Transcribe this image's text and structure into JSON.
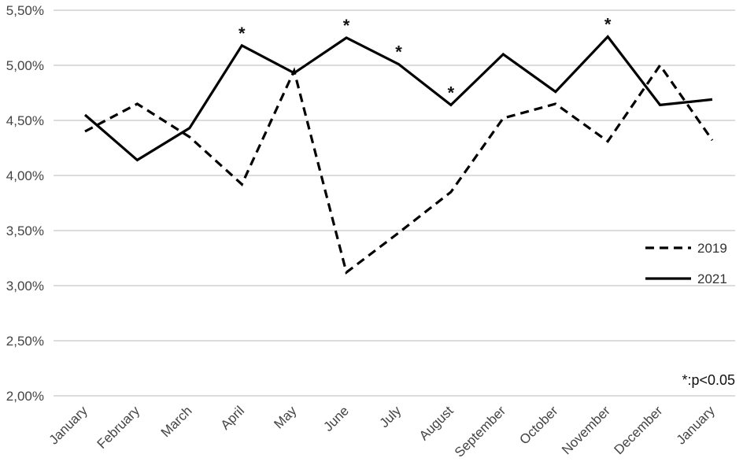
{
  "chart_data": {
    "type": "line",
    "categories": [
      "January",
      "February",
      "March",
      "April",
      "May",
      "June",
      "July",
      "August",
      "September",
      "October",
      "November",
      "December",
      "January"
    ],
    "series": [
      {
        "name": "2019",
        "values": [
          4.4,
          4.65,
          4.35,
          3.92,
          4.95,
          3.12,
          3.48,
          3.85,
          4.52,
          4.65,
          4.31,
          5.0,
          4.32
        ],
        "dash": "dashed",
        "color": "#000000"
      },
      {
        "name": "2021",
        "values": [
          4.55,
          4.14,
          4.43,
          5.18,
          4.93,
          5.25,
          5.01,
          4.64,
          5.1,
          4.76,
          5.26,
          4.64,
          4.69
        ],
        "dash": "solid",
        "color": "#000000"
      }
    ],
    "ylim": [
      2.0,
      5.5
    ],
    "yticks": [
      {
        "value": 2.0,
        "label": "2,00%"
      },
      {
        "value": 2.5,
        "label": "2,50%"
      },
      {
        "value": 3.0,
        "label": "3,00%"
      },
      {
        "value": 3.5,
        "label": "3,50%"
      },
      {
        "value": 4.0,
        "label": "4,00%"
      },
      {
        "value": 4.5,
        "label": "4,50%"
      },
      {
        "value": 5.0,
        "label": "5,00%"
      },
      {
        "value": 5.5,
        "label": "5,50%"
      }
    ],
    "grid": true,
    "legend_position": "right",
    "significance_marker": "*",
    "significant_categories": [
      3,
      5,
      6,
      7,
      10
    ],
    "annotation": "*:p<0.05"
  }
}
